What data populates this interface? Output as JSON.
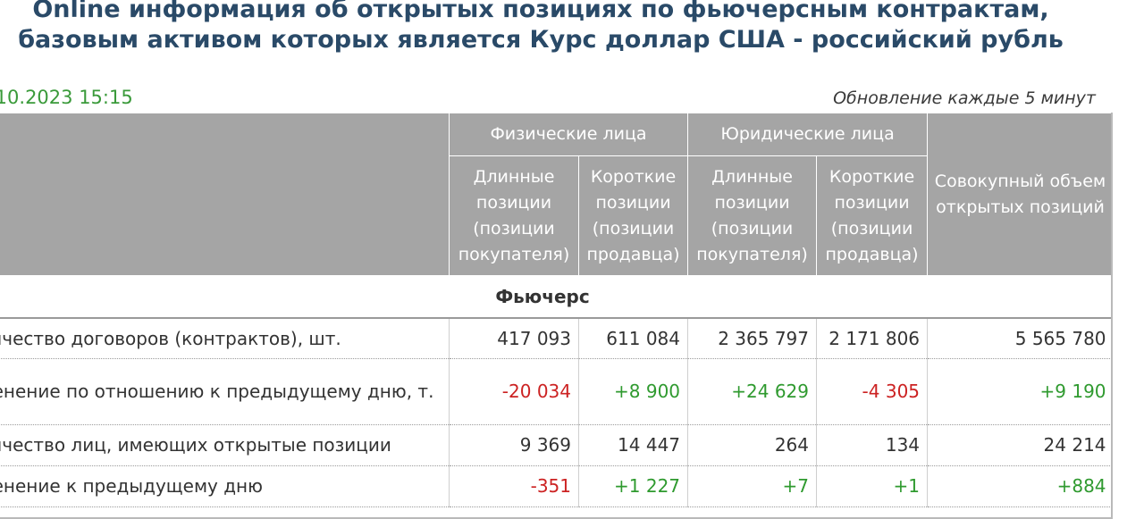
{
  "header": {
    "title_line1": "Online информация об открытых позициях по фьючерсным контрактам,",
    "title_line2": "базовым активом которых является Курс доллар США - российский рубль",
    "date": ".10.2023 15:15",
    "update_note": "Обновление каждые 5 минут"
  },
  "table": {
    "group_individuals": "Физические лица",
    "group_legal": "Юридические лица",
    "col_long_ind": "Длинные позиции (позиции покупателя)",
    "col_short_ind": "Короткие позиции (позиции продавца)",
    "col_long_leg": "Длинные позиции (позиции покупателя)",
    "col_short_leg": "Короткие позиции (позиции продавца)",
    "col_total": "Совокупный объем открытых позиций",
    "section": "Фьючерс",
    "rows": [
      {
        "label": "личество договоров (контрактов), шт.",
        "v1": "417 093",
        "v2": "611 084",
        "v3": "2 365 797",
        "v4": "2 171 806",
        "v5": "5 565 780"
      },
      {
        "label": "менение по отношению к предыдущему дню, т.",
        "v1": "-20 034",
        "v2": "+8 900",
        "v3": "+24 629",
        "v4": "-4 305",
        "v5": "+9 190"
      },
      {
        "label": "личество лиц, имеющих открытые позиции",
        "v1": "9 369",
        "v2": "14 447",
        "v3": "264",
        "v4": "134",
        "v5": "24 214"
      },
      {
        "label": "менение к предыдущему дню",
        "v1": "-351",
        "v2": "+1 227",
        "v3": "+7",
        "v4": "+1",
        "v5": "+884"
      }
    ]
  },
  "colors": {
    "title": "#2a4a68",
    "date": "#3a9a3a",
    "header_bg": "#a5a5a5",
    "negative": "#cc2222",
    "positive": "#2f9a2f"
  }
}
